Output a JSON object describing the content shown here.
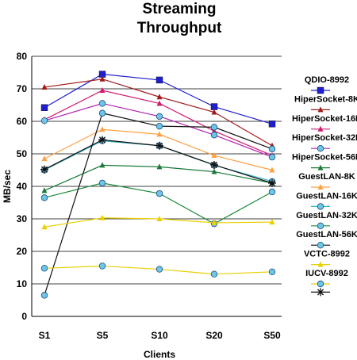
{
  "chart_data": {
    "type": "line",
    "title": [
      "Streaming",
      "Throughput"
    ],
    "xlabel": "Clients",
    "ylabel": "MB/sec",
    "categories": [
      "S1",
      "S5",
      "S10",
      "S20",
      "S50"
    ],
    "ylim": [
      0,
      80
    ],
    "yticks": [
      0,
      10,
      20,
      30,
      40,
      50,
      60,
      70,
      80
    ],
    "grid": "horizontal",
    "legend_position": "right",
    "series": [
      {
        "name": "QDIO-8992",
        "color": "#1f1fd0",
        "marker": "square",
        "values": [
          64.2,
          74.5,
          72.7,
          64.5,
          59.2
        ]
      },
      {
        "name": "HiperSocket-8K",
        "color": "#a01a1a",
        "marker": "triangle",
        "values": [
          70.5,
          73.0,
          67.5,
          62.8,
          52.5
        ]
      },
      {
        "name": "HiperSocket-16K",
        "color": "#d01a70",
        "marker": "triangle",
        "values": [
          60.5,
          69.5,
          65.5,
          57.0,
          49.5
        ]
      },
      {
        "name": "HiperSocket-32K",
        "color": "#b020b0",
        "marker": "circle",
        "values": [
          60.2,
          65.5,
          61.5,
          55.8,
          49.0
        ]
      },
      {
        "name": "HiperSocket-56K",
        "color": "#1a7a3a",
        "marker": "triangle",
        "values": [
          38.7,
          46.5,
          46.0,
          44.5,
          41.0
        ]
      },
      {
        "name": "GuestLAN-8K",
        "color": "#ffa040",
        "marker": "triangle",
        "values": [
          48.5,
          57.5,
          56.0,
          49.5,
          45.0
        ]
      },
      {
        "name": "GuestLAN-16K",
        "color": "#30b0c0",
        "marker": "circle",
        "values": [
          45.0,
          54.0,
          52.5,
          46.5,
          41.5
        ]
      },
      {
        "name": "GuestLAN-32K",
        "color": "#1a8a3a",
        "marker": "circle",
        "values": [
          36.5,
          41.0,
          37.8,
          28.5,
          38.3
        ]
      },
      {
        "name": "GuestLAN-56K",
        "color": "#111111",
        "marker": "circle",
        "values": [
          6.5,
          62.5,
          58.5,
          58.2,
          51.5
        ]
      },
      {
        "name": "VCTC-8992",
        "color": "#e8d000",
        "marker": "triangle",
        "values": [
          27.5,
          30.3,
          30.0,
          28.8,
          29.0
        ]
      },
      {
        "name": "IUCV-8992",
        "color": "#e8d000",
        "marker": "circle",
        "values": [
          14.8,
          15.5,
          14.5,
          13.0,
          13.7
        ]
      },
      {
        "name": "",
        "color": "#111111",
        "marker": "star",
        "values": [
          45.2,
          54.3,
          52.5,
          46.6,
          41.0
        ]
      }
    ],
    "legend": [
      "QDIO-8992",
      "HiperSocket-8K",
      "HiperSocket-16K",
      "HiperSocket-32K",
      "HiperSocket-56K",
      "GuestLAN-8K",
      "GuestLAN-16K",
      "GuestLAN-32K",
      "GuestLAN-56K",
      "VCTC-8992",
      "IUCV-8992"
    ]
  }
}
